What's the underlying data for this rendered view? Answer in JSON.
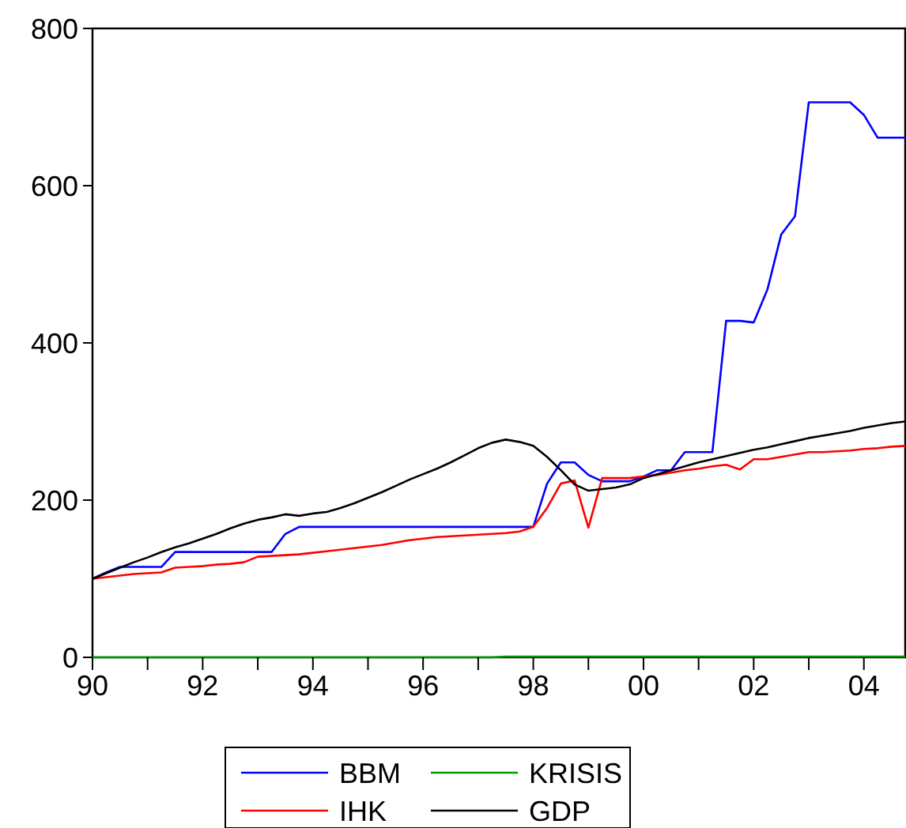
{
  "chart_data": {
    "type": "line",
    "x": [
      1990,
      1990.25,
      1990.5,
      1990.75,
      1991,
      1991.25,
      1991.5,
      1991.75,
      1992,
      1992.25,
      1992.5,
      1992.75,
      1993,
      1993.25,
      1993.5,
      1993.75,
      1994,
      1994.25,
      1994.5,
      1994.75,
      1995,
      1995.25,
      1995.5,
      1995.75,
      1996,
      1996.25,
      1996.5,
      1996.75,
      1997,
      1997.25,
      1997.5,
      1997.75,
      1998,
      1998.25,
      1998.5,
      1998.75,
      1999,
      1999.25,
      1999.5,
      1999.75,
      2000,
      2000.25,
      2000.5,
      2000.75,
      2001,
      2001.25,
      2001.5,
      2001.75,
      2002,
      2002.25,
      2002.5,
      2002.75,
      2003,
      2003.25,
      2003.5,
      2003.75,
      2004,
      2004.25,
      2004.5,
      2004.75
    ],
    "series": [
      {
        "name": "BBM",
        "color": "#0000ff",
        "values": [
          100,
          108,
          115,
          115,
          115,
          115,
          134,
          134,
          134,
          134,
          134,
          134,
          134,
          134,
          157,
          166,
          166,
          166,
          166,
          166,
          166,
          166,
          166,
          166,
          166,
          166,
          166,
          166,
          166,
          166,
          166,
          166,
          166,
          221,
          248,
          248,
          232,
          224,
          224,
          224,
          230,
          238,
          238,
          261,
          261,
          261,
          428,
          428,
          426,
          468,
          538,
          561,
          706,
          706,
          706,
          706,
          690,
          661,
          661,
          661
        ]
      },
      {
        "name": "KRISIS",
        "color": "#009900",
        "values": [
          0,
          0,
          0,
          0,
          0,
          0,
          0,
          0,
          0,
          0,
          0,
          0,
          0,
          0,
          0,
          0,
          0,
          0,
          0,
          0,
          0,
          0,
          0,
          0,
          0,
          0,
          0,
          0,
          0,
          0,
          1,
          1,
          1,
          1,
          1,
          1,
          1,
          1,
          1,
          1,
          1,
          1,
          1,
          1,
          1,
          1,
          1,
          1,
          1,
          1,
          1,
          1,
          1,
          1,
          1,
          1,
          1,
          1,
          1,
          1
        ]
      },
      {
        "name": "IHK",
        "color": "#ff0000",
        "values": [
          100,
          102,
          104,
          106,
          107,
          108,
          114,
          115,
          116,
          118,
          119,
          121,
          128,
          129,
          130,
          131,
          133,
          135,
          137,
          139,
          141,
          143,
          146,
          149,
          151,
          153,
          154,
          155,
          156,
          157,
          158,
          160,
          166,
          190,
          221,
          225,
          165,
          228,
          228,
          228,
          230,
          232,
          235,
          238,
          240,
          243,
          245,
          239,
          252,
          252,
          255,
          258,
          261,
          261,
          262,
          263,
          265,
          266,
          268,
          269
        ]
      },
      {
        "name": "GDP",
        "color": "#000000",
        "values": [
          100,
          107,
          114,
          121,
          127,
          134,
          140,
          145,
          151,
          157,
          164,
          170,
          175,
          178,
          182,
          180,
          183,
          185,
          190,
          196,
          203,
          210,
          218,
          226,
          233,
          240,
          248,
          257,
          266,
          273,
          277,
          274,
          269,
          255,
          238,
          220,
          212,
          214,
          216,
          220,
          228,
          233,
          238,
          243,
          248,
          252,
          256,
          260,
          264,
          267,
          271,
          275,
          279,
          282,
          285,
          288,
          292,
          295,
          298,
          300
        ]
      }
    ],
    "xlim": [
      1990,
      2004.75
    ],
    "xticks": [
      {
        "value": 1990,
        "label": "90"
      },
      {
        "value": 1991,
        "label": null
      },
      {
        "value": 1992,
        "label": "92"
      },
      {
        "value": 1993,
        "label": null
      },
      {
        "value": 1994,
        "label": "94"
      },
      {
        "value": 1995,
        "label": null
      },
      {
        "value": 1996,
        "label": "96"
      },
      {
        "value": 1997,
        "label": null
      },
      {
        "value": 1998,
        "label": "98"
      },
      {
        "value": 1999,
        "label": null
      },
      {
        "value": 2000,
        "label": "00"
      },
      {
        "value": 2001,
        "label": null
      },
      {
        "value": 2002,
        "label": "02"
      },
      {
        "value": 2003,
        "label": null
      },
      {
        "value": 2004,
        "label": "04"
      }
    ],
    "ylim": [
      0,
      800
    ],
    "yticks": [
      0,
      200,
      400,
      600,
      800
    ],
    "legend": "bottom",
    "grid": false,
    "line_style": "solid",
    "marker": "none"
  }
}
